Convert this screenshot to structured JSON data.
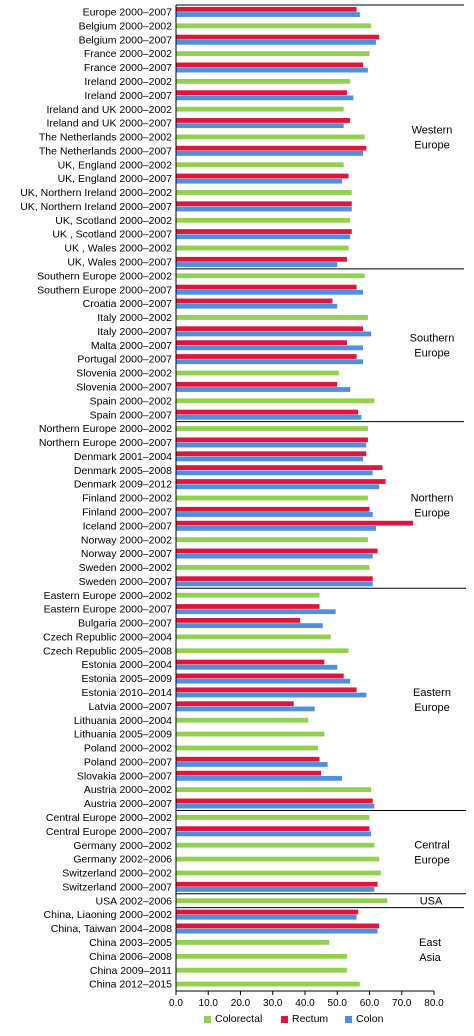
{
  "chart_data": {
    "type": "bar",
    "orientation": "horizontal",
    "xlim": [
      0,
      80
    ],
    "xticks": [
      "0.0",
      "10.0",
      "20.0",
      "30.0",
      "40.0",
      "50.0",
      "60.0",
      "70.0",
      "80.0"
    ],
    "grid": false,
    "legend_position": "bottom",
    "series": [
      {
        "name": "Colorectal",
        "color": "#92d050"
      },
      {
        "name": "Rectum",
        "color": "#e0143c"
      },
      {
        "name": "Colon",
        "color": "#4f8fe0"
      }
    ],
    "categories": [
      {
        "label": "Europe 2000–2007",
        "rectum": 56,
        "colon": 57
      },
      {
        "label": "Belgium 2000–2002",
        "colorectal": 60.5
      },
      {
        "label": "Belgium 2000–2007",
        "rectum": 63,
        "colon": 62
      },
      {
        "label": "France 2000–2002",
        "colorectal": 60
      },
      {
        "label": "France 2000–2007",
        "rectum": 58,
        "colon": 59.5
      },
      {
        "label": "Ireland 2000–2002",
        "colorectal": 54
      },
      {
        "label": "Ireland 2000–2007",
        "rectum": 53,
        "colon": 55
      },
      {
        "label": "Ireland and UK 2000–2002",
        "colorectal": 52
      },
      {
        "label": "Ireland and UK 2000–2007",
        "rectum": 54,
        "colon": 52
      },
      {
        "label": "The Netherlands 2000–2002",
        "colorectal": 58.5
      },
      {
        "label": "The Netherlands 2000–2007",
        "rectum": 59,
        "colon": 58
      },
      {
        "label": "UK, England 2000–2002",
        "colorectal": 52
      },
      {
        "label": "UK, England 2000–2007",
        "rectum": 53.5,
        "colon": 51.5
      },
      {
        "label": "UK, Northern Ireland 2000–2002",
        "colorectal": 54.5
      },
      {
        "label": "UK, Northern Ireland 2000–2007",
        "rectum": 54.5,
        "colon": 54.5
      },
      {
        "label": "UK, Scotland 2000–2002",
        "colorectal": 54
      },
      {
        "label": "UK , Scotland 2000–2007",
        "rectum": 54.5,
        "colon": 54
      },
      {
        "label": "UK , Wales 2000–2002",
        "colorectal": 53.5
      },
      {
        "label": "UK, Wales 2000–2007",
        "rectum": 53,
        "colon": 50
      },
      {
        "label": "Southern Europe 2000–2002",
        "colorectal": 58.5
      },
      {
        "label": "Southern Europe 2000–2007",
        "rectum": 56,
        "colon": 58
      },
      {
        "label": "Croatia 2000–2007",
        "rectum": 48.5,
        "colon": 50
      },
      {
        "label": "Italy 2000–2002",
        "colorectal": 59.5
      },
      {
        "label": "Italy 2000–2007",
        "rectum": 58,
        "colon": 60.5
      },
      {
        "label": "Malta 2000–2007",
        "rectum": 53,
        "colon": 58
      },
      {
        "label": "Portugal 2000–2007",
        "rectum": 56,
        "colon": 58
      },
      {
        "label": "Slovenia 2000–2002",
        "colorectal": 50.5
      },
      {
        "label": "Slovenia 2000–2007",
        "rectum": 50,
        "colon": 54
      },
      {
        "label": "Spain 2000–2002",
        "colorectal": 61.5
      },
      {
        "label": "Spain 2000–2007",
        "rectum": 56.5,
        "colon": 57.5
      },
      {
        "label": "Northern Europe 2000–2002",
        "colorectal": 59.5
      },
      {
        "label": "Northern Europe 2000–2007",
        "rectum": 59.5,
        "colon": 59
      },
      {
        "label": "Denmark 2001–2004",
        "rectum": 59,
        "colon": 58
      },
      {
        "label": "Denmark 2005–2008",
        "rectum": 64,
        "colon": 61
      },
      {
        "label": "Denmark 2009–2012",
        "rectum": 65,
        "colon": 63
      },
      {
        "label": "Finland 2000–2002",
        "colorectal": 59.5
      },
      {
        "label": "Finland 2000–2007",
        "rectum": 60,
        "colon": 61
      },
      {
        "label": "Iceland 2000–2007",
        "rectum": 73.5,
        "colon": 62
      },
      {
        "label": "Norway 2000–2002",
        "colorectal": 59.5
      },
      {
        "label": "Norway 2000–2007",
        "rectum": 62.5,
        "colon": 61
      },
      {
        "label": "Sweden 2000–2002",
        "colorectal": 60
      },
      {
        "label": "Sweden 2000–2007",
        "rectum": 61,
        "colon": 61
      },
      {
        "label": "Eastern Europe 2000–2002",
        "colorectal": 44.5
      },
      {
        "label": "Eastern Europe 2000–2007",
        "rectum": 44.5,
        "colon": 49.5
      },
      {
        "label": "Bulgaria 2000–2007",
        "rectum": 38.5,
        "colon": 45.5
      },
      {
        "label": "Czech Republic 2000–2004",
        "colorectal": 48
      },
      {
        "label": "Czech Republic 2005–2008",
        "colorectal": 53.5
      },
      {
        "label": "Estonia 2000–2004",
        "rectum": 46,
        "colon": 50
      },
      {
        "label": "Estonia 2005–2009",
        "rectum": 52,
        "colon": 54
      },
      {
        "label": "Estonia 2010–2014",
        "rectum": 56,
        "colon": 59
      },
      {
        "label": "Latvia 2000–2007",
        "rectum": 36.5,
        "colon": 43
      },
      {
        "label": "Lithuania 2000–2004",
        "colorectal": 41
      },
      {
        "label": "Lithuania 2005–2009",
        "colorectal": 46
      },
      {
        "label": "Poland 2000–2002",
        "colorectal": 44
      },
      {
        "label": "Poland 2000–2007",
        "rectum": 44.5,
        "colon": 47
      },
      {
        "label": "Slovakia 2000–2007",
        "rectum": 45,
        "colon": 51.5
      },
      {
        "label": "Austria 2000–2002",
        "colorectal": 60.5
      },
      {
        "label": "Austria 2000–2007",
        "rectum": 61,
        "colon": 61.5
      },
      {
        "label": "Central Europe 2000–2002",
        "colorectal": 60
      },
      {
        "label": "Central Europe 2000–2007",
        "rectum": 60,
        "colon": 60.5
      },
      {
        "label": "Germany 2000–2002",
        "colorectal": 61.5
      },
      {
        "label": "Germany 2002–2006",
        "colorectal": 63
      },
      {
        "label": "Switzerland 2000–2002",
        "colorectal": 63.5
      },
      {
        "label": "Switzerland 2000–2007",
        "rectum": 62.5,
        "colon": 61.5
      },
      {
        "label": "USA 2002–2006",
        "colorectal": 65.5
      },
      {
        "label": "China, Liaoning 2000–2002",
        "rectum": 56.5,
        "colon": 56
      },
      {
        "label": "China, Taiwan 2004–2008",
        "rectum": 63,
        "colon": 62.5
      },
      {
        "label": "China 2003–2005",
        "colorectal": 47.5
      },
      {
        "label": "China 2006–2008",
        "colorectal": 53
      },
      {
        "label": "China 2009–2011",
        "colorectal": 53
      },
      {
        "label": "China 2012–2015",
        "colorectal": 57
      }
    ],
    "region_labels": [
      {
        "lines": [
          "Western",
          "Europe"
        ]
      },
      {
        "lines": [
          "Southern",
          "Europe"
        ]
      },
      {
        "lines": [
          "Northern",
          "Europe"
        ]
      },
      {
        "lines": [
          "Eastern",
          "Europe"
        ]
      },
      {
        "lines": [
          "Central",
          "Europe"
        ]
      },
      {
        "lines": [
          "USA"
        ]
      },
      {
        "lines": [
          "East",
          "Asia"
        ]
      }
    ]
  }
}
